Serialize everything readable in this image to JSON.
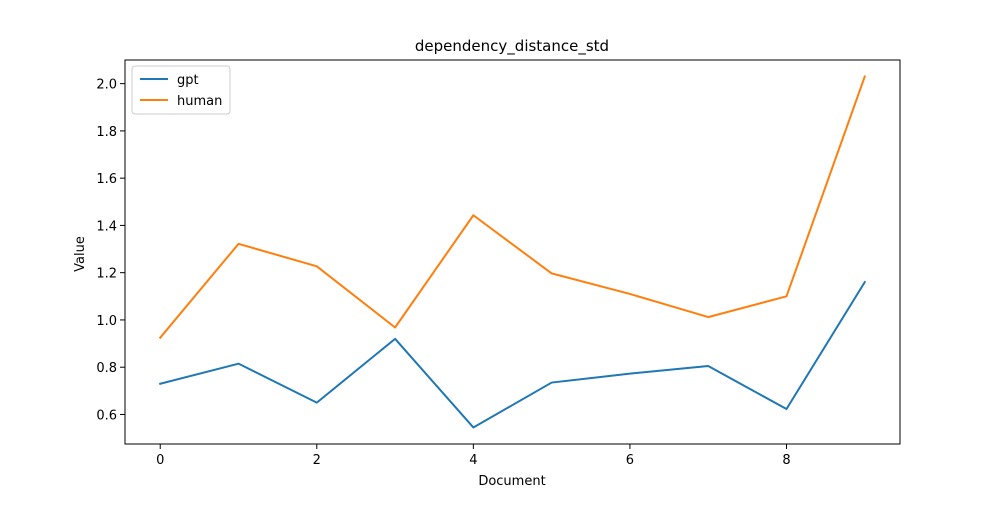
{
  "chart_data": {
    "type": "line",
    "title": "dependency_distance_std",
    "xlabel": "Document",
    "ylabel": "Value",
    "x": [
      0,
      1,
      2,
      3,
      4,
      5,
      6,
      7,
      8,
      9
    ],
    "xlim": [
      -0.45,
      9.45
    ],
    "ylim": [
      0.475,
      2.1
    ],
    "xticks": [
      0,
      2,
      4,
      6,
      8
    ],
    "yticks": [
      0.6,
      0.8,
      1.0,
      1.2,
      1.4,
      1.6,
      1.8,
      2.0
    ],
    "xtick_labels": [
      "0",
      "2",
      "4",
      "6",
      "8"
    ],
    "ytick_labels": [
      "0.6",
      "0.8",
      "1.0",
      "1.2",
      "1.4",
      "1.6",
      "1.8",
      "2.0"
    ],
    "legend_position": "upper-left",
    "grid": false,
    "series": [
      {
        "name": "gpt",
        "color": "#1f77b4",
        "values": [
          0.73,
          0.815,
          0.65,
          0.92,
          0.545,
          0.735,
          0.773,
          0.805,
          0.623,
          1.16
        ]
      },
      {
        "name": "human",
        "color": "#ff7f0e",
        "values": [
          0.925,
          1.322,
          1.227,
          0.968,
          1.443,
          1.197,
          1.11,
          1.012,
          1.1,
          2.03
        ]
      }
    ]
  }
}
